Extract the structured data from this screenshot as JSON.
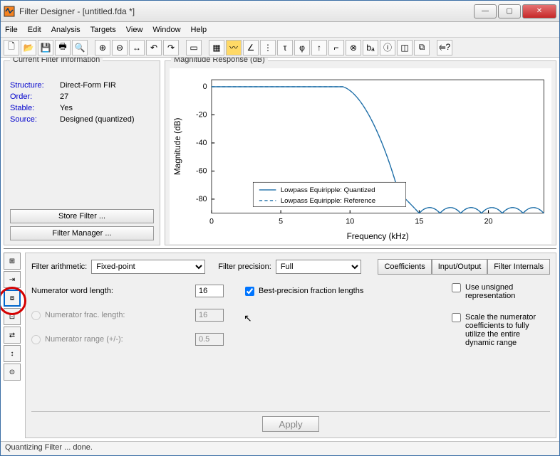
{
  "window": {
    "title": "Filter Designer -   [untitled.fda *]"
  },
  "menu": [
    "File",
    "Edit",
    "Analysis",
    "Targets",
    "View",
    "Window",
    "Help"
  ],
  "filterInfo": {
    "title": "Current Filter Information",
    "rows": [
      {
        "label": "Structure:",
        "value": "Direct-Form FIR"
      },
      {
        "label": "Order:",
        "value": "27"
      },
      {
        "label": "Stable:",
        "value": "Yes"
      },
      {
        "label": "Source:",
        "value": "Designed (quantized)"
      }
    ],
    "storeBtn": "Store Filter ...",
    "managerBtn": "Filter Manager ..."
  },
  "chart": {
    "title": "Magnitude Response (dB)",
    "xlabel": "Frequency (kHz)",
    "ylabel": "Magnitude (dB)",
    "xlim": [
      0,
      24
    ],
    "xtick_step": 5,
    "ylim": [
      -90,
      5
    ],
    "ytick_step": 20,
    "legend": [
      "Lowpass Equiripple: Quantized",
      "Lowpass Equiripple: Reference"
    ],
    "line_color": "#1f6fa8",
    "grid_color": "#000000",
    "bg": "#ffffff",
    "passband_x": 9.5,
    "passband_y": 0,
    "stopband_y": -82,
    "lobes_start_x": 13.5,
    "ref_dash": "4,3"
  },
  "filterArith": {
    "label": "Filter arithmetic:",
    "value": "Fixed-point",
    "precLabel": "Filter precision:",
    "precValue": "Full",
    "tabs": [
      "Coefficients",
      "Input/Output",
      "Filter Internals"
    ]
  },
  "numerator": {
    "wordLabel": "Numerator word length:",
    "wordVal": "16",
    "bestPrec": "Best-precision fraction lengths",
    "fracLabel": "Numerator frac. length:",
    "fracVal": "16",
    "rangeLabel": "Numerator range (+/-):",
    "rangeVal": "0.5"
  },
  "rightOpts": {
    "unsigned": "Use unsigned representation",
    "scale": "Scale the numerator coefficients to fully utilize the entire dynamic range"
  },
  "apply": "Apply",
  "status": "Quantizing Filter ... done."
}
